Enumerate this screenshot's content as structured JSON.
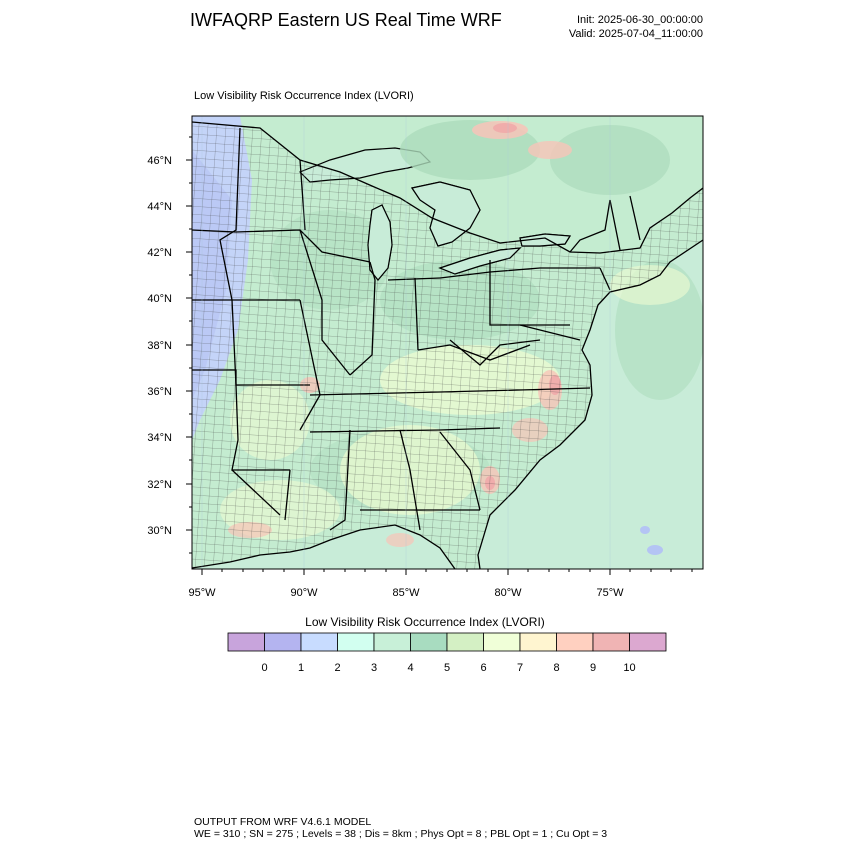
{
  "header": {
    "title": "IWFAQRP Eastern US Real Time WRF",
    "init": "Init: 2025-06-30_00:00:00",
    "valid": "Valid: 2025-07-04_11:00:00"
  },
  "panel": {
    "label": "Low Visibility Risk Occurrence Index   (LVORI)",
    "lat_ticks": [
      "46°N",
      "44°N",
      "42°N",
      "40°N",
      "38°N",
      "36°N",
      "34°N",
      "32°N",
      "30°N"
    ],
    "lon_ticks": [
      "95°W",
      "90°W",
      "85°W",
      "80°W",
      "75°W"
    ]
  },
  "colorbar": {
    "title": "Low Visibility Risk Occurrence Index  (LVORI)",
    "labels": [
      "0",
      "1",
      "2",
      "3",
      "4",
      "5",
      "6",
      "7",
      "8",
      "9",
      "10"
    ],
    "colors": [
      "#c8a4dc",
      "#b4b4f0",
      "#c8dcff",
      "#d2fff0",
      "#c8f0d8",
      "#a8dcc0",
      "#d4f0c4",
      "#f0ffd8",
      "#fff5d0",
      "#ffd0c0",
      "#f0b4b4",
      "#dca8d0"
    ]
  },
  "map": {
    "colors": {
      "ocean": "#c8ecd8",
      "land": "#c4ecd0",
      "lake": "#c8ecd8",
      "blue": "#c4d4f8",
      "green": "#acdcbc",
      "yellow": "#eefcd2",
      "pink": "#f8c4b8",
      "red": "#f0aaaa",
      "county_line": "#3a3a3a",
      "state_line": "#000000"
    }
  },
  "footer": {
    "line1": "OUTPUT FROM WRF V4.6.1 MODEL",
    "line2": "WE = 310 ; SN = 275 ; Levels = 38 ; Dis = 8km ; Phys Opt = 8 ; PBL Opt = 1 ; Cu Opt = 3"
  }
}
